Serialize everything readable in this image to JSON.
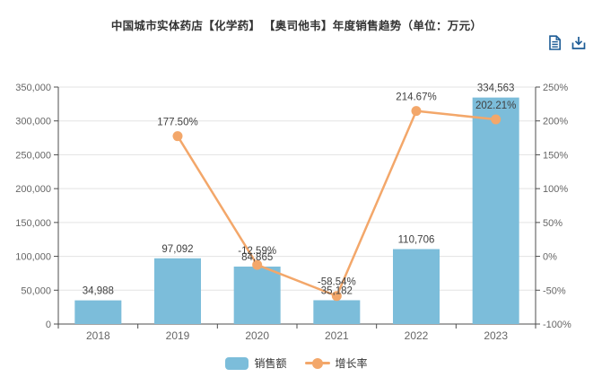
{
  "title": "中国城市实体药店【化学药】 【奥司他韦】年度销售趋势（单位：万元）",
  "toolbox": {
    "icons": [
      "data-view-icon",
      "download-icon"
    ]
  },
  "legend": {
    "position": "bottom",
    "items": [
      {
        "label": "销售额",
        "type": "bar"
      },
      {
        "label": "增长率",
        "type": "line"
      }
    ]
  },
  "colors": {
    "bar": "#7cbdda",
    "line": "#f3a76a",
    "grid": "#e3e3e3",
    "axis": "#4d4d4d",
    "tick_label": "#666666",
    "data_label": "#404040",
    "title": "#333333",
    "toolbox_icon": "#1c5b95",
    "background": "#ffffff"
  },
  "chart_data": {
    "type": "bar+line",
    "title": "中国城市实体药店【化学药】 【奥司他韦】年度销售趋势（单位：万元）",
    "unit": "万元",
    "grid": true,
    "legend_position": "bottom",
    "categories": [
      "2018",
      "2019",
      "2020",
      "2021",
      "2022",
      "2023"
    ],
    "series": [
      {
        "name": "销售额",
        "type": "bar",
        "axis": "left",
        "values": [
          34988,
          97092,
          84865,
          35182,
          110706,
          334563
        ],
        "labels": [
          "34,988",
          "97,092",
          "84,865",
          "35,182",
          "110,706",
          "334,563"
        ]
      },
      {
        "name": "增长率",
        "type": "line",
        "axis": "right",
        "values": [
          null,
          177.5,
          -12.59,
          -58.54,
          214.67,
          202.21
        ],
        "labels": [
          null,
          "177.50%",
          "-12.59%",
          "-58.54%",
          "214.67%",
          "202.21%"
        ]
      }
    ],
    "left_axis": {
      "min": 0,
      "max": 350000,
      "step": 50000,
      "ticks": [
        "0",
        "50,000",
        "100,000",
        "150,000",
        "200,000",
        "250,000",
        "300,000",
        "350,000"
      ]
    },
    "right_axis": {
      "min": -100,
      "max": 250,
      "step": 50,
      "ticks": [
        "-100%",
        "-50%",
        "0%",
        "50%",
        "100%",
        "150%",
        "200%",
        "250%"
      ]
    }
  }
}
